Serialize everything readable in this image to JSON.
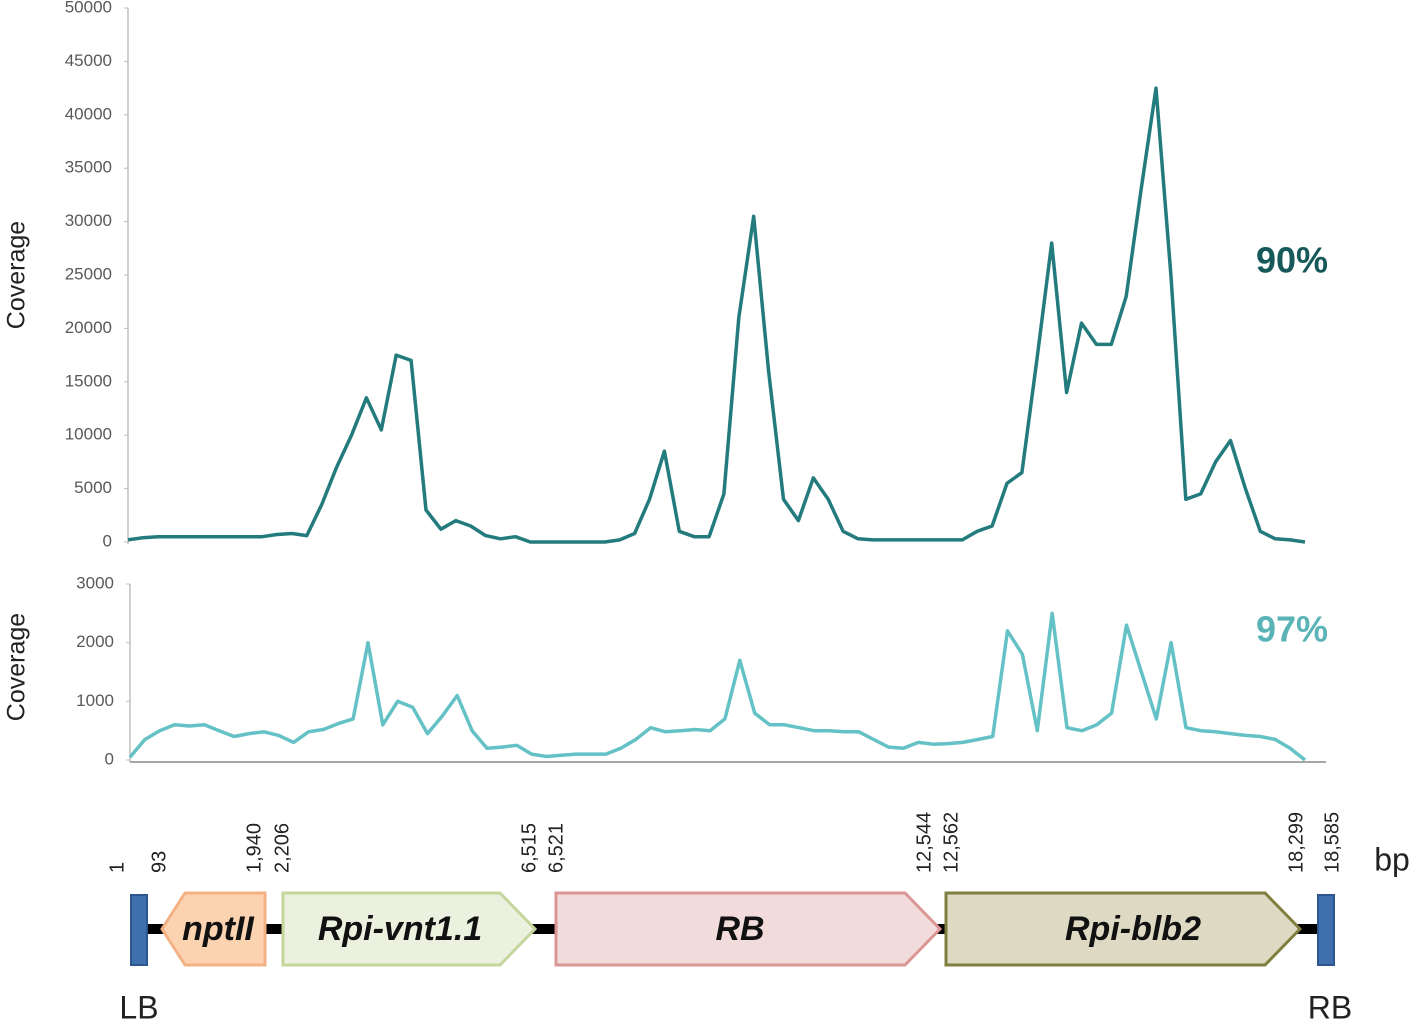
{
  "chart_data": [
    {
      "type": "line",
      "y_label": "Coverage",
      "annotation": "90%",
      "annotation_color": "#17595b",
      "color": "#237b7d",
      "ylim": [
        0,
        50000
      ],
      "yticks": [
        0,
        5000,
        10000,
        15000,
        20000,
        25000,
        30000,
        35000,
        40000,
        45000,
        50000
      ],
      "values": [
        200,
        400,
        500,
        500,
        500,
        500,
        500,
        500,
        500,
        500,
        700,
        800,
        600,
        3500,
        7000,
        10000,
        13500,
        10500,
        17500,
        17000,
        3000,
        1200,
        2000,
        1500,
        600,
        300,
        500,
        0,
        0,
        0,
        0,
        0,
        0,
        200,
        800,
        4000,
        8500,
        1000,
        500,
        500,
        4500,
        21000,
        30500,
        16000,
        4000,
        2000,
        6000,
        4000,
        1000,
        300,
        200,
        200,
        200,
        200,
        200,
        200,
        200,
        1000,
        1500,
        5500,
        6500,
        17000,
        28000,
        14000,
        20500,
        18500,
        18500,
        23000,
        33000,
        42500,
        25000,
        4000,
        4500,
        7500,
        9500,
        5000,
        1000,
        300,
        200,
        0
      ]
    },
    {
      "type": "line",
      "y_label": "Coverage",
      "annotation": "97%",
      "annotation_color": "#5ab4b7",
      "color": "#64c1c5",
      "ylim": [
        0,
        3000
      ],
      "yticks": [
        0,
        1000,
        2000,
        3000
      ],
      "values": [
        50,
        350,
        500,
        600,
        580,
        600,
        500,
        400,
        450,
        480,
        420,
        300,
        480,
        520,
        620,
        700,
        2000,
        600,
        1000,
        900,
        450,
        750,
        1100,
        500,
        200,
        220,
        250,
        100,
        60,
        80,
        100,
        100,
        100,
        200,
        350,
        550,
        480,
        500,
        520,
        500,
        700,
        1700,
        800,
        600,
        600,
        550,
        500,
        500,
        480,
        480,
        350,
        220,
        200,
        300,
        270,
        280,
        300,
        350,
        400,
        2200,
        1800,
        500,
        2500,
        550,
        500,
        600,
        800,
        2300,
        1500,
        700,
        2000,
        550,
        500,
        480,
        450,
        420,
        400,
        350,
        200,
        0
      ]
    }
  ],
  "gene_map": {
    "positions": [
      "1",
      "93",
      "1,940",
      "2,206",
      "6,515",
      "6,521",
      "12,544",
      "12,562",
      "18,299",
      "18,585"
    ],
    "unit": "bp",
    "genes": [
      "nptII",
      "Rpi-vnt1.1",
      "RB",
      "Rpi-blb2"
    ],
    "left_border": "LB",
    "right_border": "RB"
  }
}
